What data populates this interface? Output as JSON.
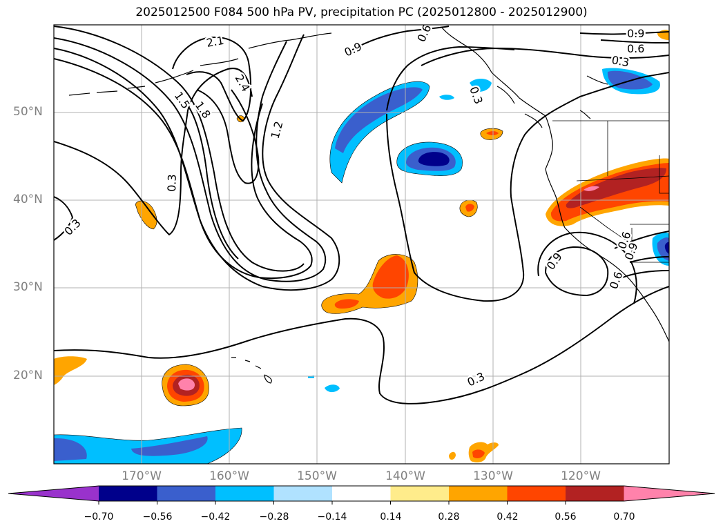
{
  "title": "2025012500 F084 500 hPa PV, precipitation PC (2025012800 - 2025012900)",
  "lat_labels": [
    "50°N",
    "40°N",
    "30°N",
    "20°N"
  ],
  "lon_labels": [
    "170°W",
    "160°W",
    "150°W",
    "140°W",
    "130°W",
    "120°W"
  ],
  "contour_labels": [
    "2.1",
    "2.4",
    "1.5",
    "1.8",
    "1.2",
    "0.9",
    "0.6",
    "0.3",
    "0.3",
    "0.3",
    "0.9",
    "0.6",
    "0.3",
    "0.9",
    "0.6",
    "0.9",
    "0.6",
    "0.3"
  ],
  "colorbar": {
    "ticks": [
      "−0.70",
      "−0.56",
      "−0.42",
      "−0.28",
      "−0.14",
      "0.14",
      "0.28",
      "0.42",
      "0.56",
      "0.70"
    ],
    "colors": [
      "#9932cc",
      "#00008b",
      "#3a5fcd",
      "#00bfff",
      "#b0e2ff",
      "#ffffff",
      "#ffec8b",
      "#ffa500",
      "#ff4500",
      "#b22222",
      "#ff82ab"
    ]
  },
  "map": {
    "projection": "lat-lon",
    "lat_range": [
      10,
      60
    ],
    "lon_range": [
      -180,
      -110
    ],
    "gridlines": true
  }
}
